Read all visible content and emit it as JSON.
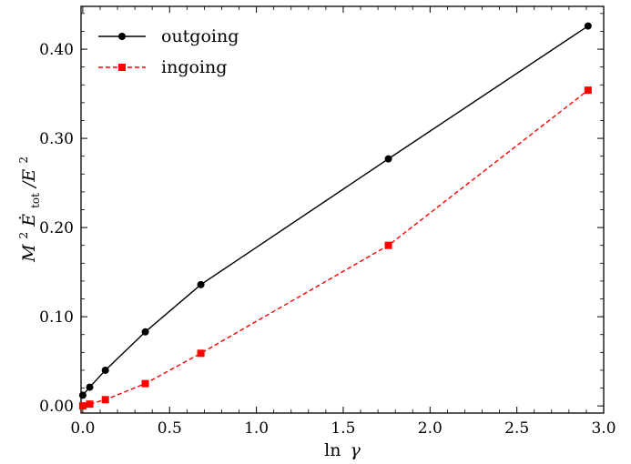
{
  "chart_data": {
    "type": "line",
    "x_ticks": [
      "0.0",
      "0.5",
      "1.0",
      "1.5",
      "2.0",
      "2.5",
      "3.0"
    ],
    "y_ticks": [
      "0.00",
      "0.10",
      "0.20",
      "0.30",
      "0.40"
    ],
    "xlim": [
      -0.01,
      3.0
    ],
    "ylim": [
      -0.008,
      0.448
    ],
    "xlabel": {
      "prefix": "ln",
      "symbol": "γ"
    },
    "ylabel": {
      "M": "M",
      "exp1": "2",
      "E_dot": "Ė",
      "sub": "tot",
      "slash_E": "/E",
      "exp2": "2"
    },
    "legend_position": "top-left",
    "series": [
      {
        "name": "outgoing",
        "color": "#000000",
        "marker": "circle",
        "dash": "solid",
        "x": [
          0.0,
          0.04,
          0.13,
          0.36,
          0.68,
          1.76,
          2.91
        ],
        "y": [
          0.012,
          0.021,
          0.04,
          0.083,
          0.136,
          0.277,
          0.426
        ]
      },
      {
        "name": "ingoing",
        "color": "#ff0000",
        "marker": "square",
        "dash": "dashed",
        "x": [
          0.0,
          0.04,
          0.13,
          0.36,
          0.68,
          1.76,
          2.91
        ],
        "y": [
          0.0,
          0.002,
          0.007,
          0.025,
          0.059,
          0.18,
          0.354
        ]
      }
    ]
  }
}
